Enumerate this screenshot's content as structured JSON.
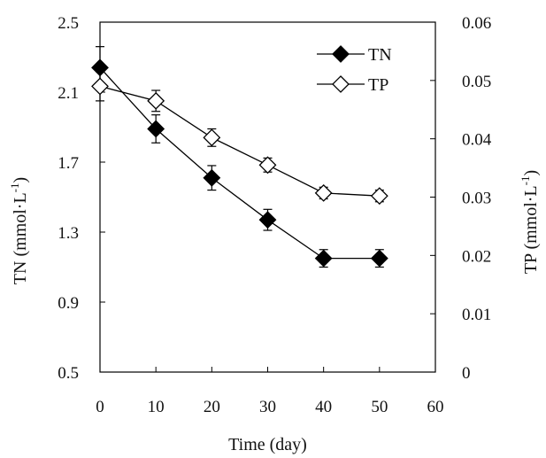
{
  "chart_data": {
    "type": "line",
    "title": "",
    "xlabel": "Time (day)",
    "ylabel_left": {
      "text": "TN (mmol·L",
      "sup": "-1",
      "close": ")"
    },
    "ylabel_right": {
      "text": "TP (mmol·L",
      "sup": "-1",
      "close": ")"
    },
    "xlim": [
      0,
      60
    ],
    "ylim_left": [
      0.5,
      2.5
    ],
    "ylim_right": [
      0,
      0.06
    ],
    "x_ticks": [
      0,
      10,
      20,
      30,
      40,
      50,
      60
    ],
    "x_tick_labels": [
      "0",
      "10",
      "20",
      "30",
      "40",
      "50",
      "60"
    ],
    "y_left_ticks": [
      0.5,
      0.9,
      1.3,
      1.7,
      2.1,
      2.5
    ],
    "y_left_tick_labels": [
      "0.5",
      "0.9",
      "1.3",
      "1.7",
      "2.1",
      "2.5"
    ],
    "y_right_ticks": [
      0,
      0.01,
      0.02,
      0.03,
      0.04,
      0.05,
      0.06
    ],
    "y_right_tick_labels": [
      "0",
      "0.01",
      "0.02",
      "0.03",
      "0.04",
      "0.05",
      "0.06"
    ],
    "grid": false,
    "legend_position": "top-right",
    "series": [
      {
        "name": "TN",
        "axis": "left",
        "marker": "filled-diamond",
        "color": "#000000",
        "x": [
          0,
          10,
          20,
          30,
          40,
          50
        ],
        "y": [
          2.24,
          1.89,
          1.61,
          1.37,
          1.15,
          1.15
        ],
        "error": [
          0.12,
          0.08,
          0.07,
          0.06,
          0.05,
          0.05
        ]
      },
      {
        "name": "TP",
        "axis": "right",
        "marker": "open-diamond",
        "color": "#000000",
        "x": [
          0,
          10,
          20,
          30,
          40,
          50
        ],
        "y": [
          0.049,
          0.0465,
          0.0402,
          0.0355,
          0.0307,
          0.0302
        ],
        "error": [
          0.0025,
          0.0018,
          0.0015,
          0.0012,
          0.001,
          0.001
        ]
      }
    ]
  }
}
